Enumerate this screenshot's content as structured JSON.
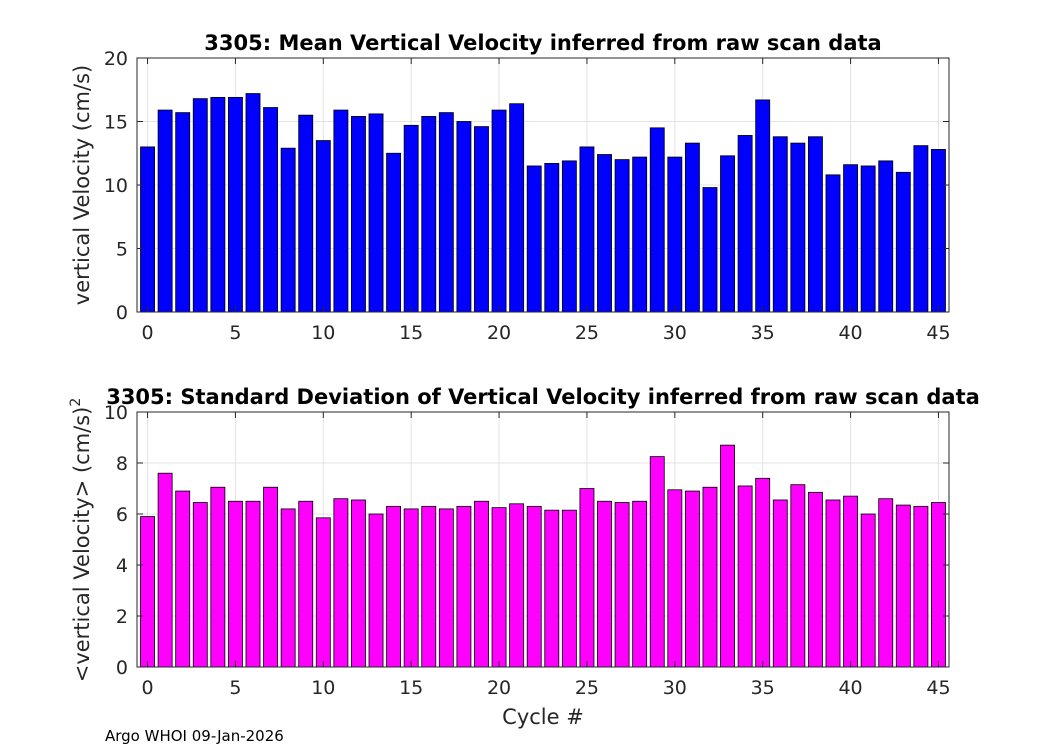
{
  "chart_data": [
    {
      "type": "bar",
      "title": "3305: Mean Vertical Velocity inferred from raw scan data",
      "xlabel": "",
      "ylabel": "vertical Velocity (cm/s)",
      "x": [
        0,
        1,
        2,
        3,
        4,
        5,
        6,
        7,
        8,
        9,
        10,
        11,
        12,
        13,
        14,
        15,
        16,
        17,
        18,
        19,
        20,
        21,
        22,
        23,
        24,
        25,
        26,
        27,
        28,
        29,
        30,
        31,
        32,
        33,
        34,
        35,
        36,
        37,
        38,
        39,
        40,
        41,
        42,
        43,
        44,
        45
      ],
      "values": [
        13.0,
        15.9,
        15.7,
        16.8,
        16.9,
        16.9,
        17.2,
        16.1,
        12.9,
        15.5,
        13.5,
        15.9,
        15.4,
        15.6,
        12.5,
        14.7,
        15.4,
        15.7,
        15.0,
        14.6,
        15.9,
        16.4,
        11.5,
        11.7,
        11.9,
        13.0,
        12.4,
        12.0,
        12.2,
        14.5,
        12.2,
        13.3,
        9.8,
        12.3,
        13.9,
        16.7,
        13.8,
        13.3,
        13.8,
        10.8,
        11.6,
        11.5,
        11.9,
        11.0,
        13.1,
        12.8
      ],
      "xlim": [
        -0.6,
        45.6
      ],
      "ylim": [
        0,
        20
      ],
      "xticks": [
        0,
        5,
        10,
        15,
        20,
        25,
        30,
        35,
        40,
        45
      ],
      "yticks": [
        0,
        5,
        10,
        15,
        20
      ],
      "grid": true,
      "color": "#0000ff"
    },
    {
      "type": "bar",
      "title": "3305: Standard Deviation of Vertical Velocity inferred from raw scan data",
      "xlabel": "Cycle #",
      "ylabel": "<vertical Velocity> (cm/s)",
      "ylabel_superscript": "2",
      "x": [
        0,
        1,
        2,
        3,
        4,
        5,
        6,
        7,
        8,
        9,
        10,
        11,
        12,
        13,
        14,
        15,
        16,
        17,
        18,
        19,
        20,
        21,
        22,
        23,
        24,
        25,
        26,
        27,
        28,
        29,
        30,
        31,
        32,
        33,
        34,
        35,
        36,
        37,
        38,
        39,
        40,
        41,
        42,
        43,
        44,
        45
      ],
      "values": [
        5.9,
        7.6,
        6.9,
        6.45,
        7.05,
        6.5,
        6.5,
        7.05,
        6.2,
        6.5,
        5.85,
        6.6,
        6.55,
        6.0,
        6.3,
        6.2,
        6.3,
        6.2,
        6.3,
        6.5,
        6.25,
        6.4,
        6.3,
        6.15,
        6.15,
        7.0,
        6.5,
        6.45,
        6.5,
        8.25,
        6.95,
        6.9,
        7.05,
        8.7,
        7.1,
        7.4,
        6.55,
        7.15,
        6.85,
        6.55,
        6.7,
        6.0,
        6.6,
        6.35,
        6.3,
        6.45
      ],
      "xlim": [
        -0.6,
        45.6
      ],
      "ylim": [
        0,
        10
      ],
      "xticks": [
        0,
        5,
        10,
        15,
        20,
        25,
        30,
        35,
        40,
        45
      ],
      "yticks": [
        0,
        2,
        4,
        6,
        8,
        10
      ],
      "grid": true,
      "color": "#ff00ff"
    }
  ],
  "footer": "Argo WHOI 09-Jan-2026"
}
